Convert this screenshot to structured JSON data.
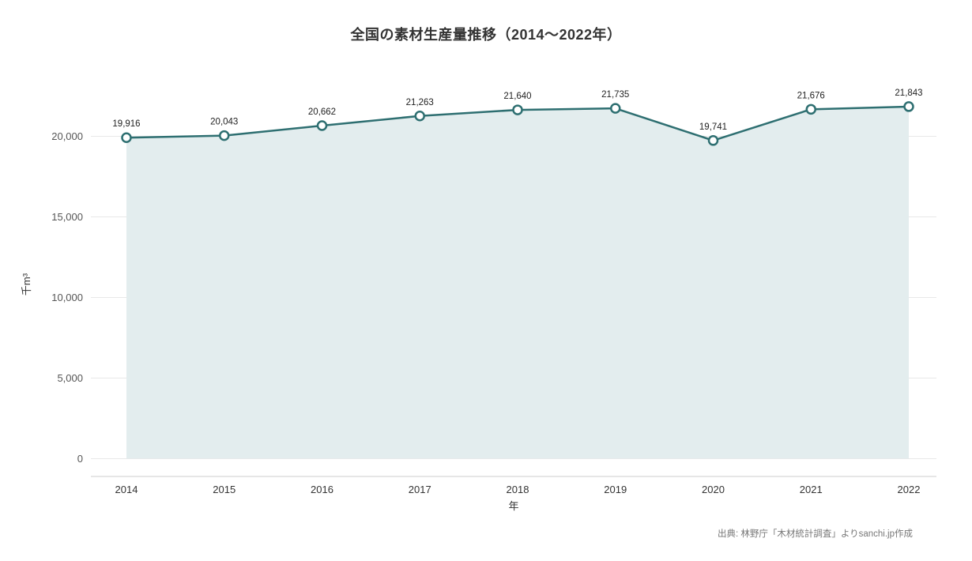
{
  "title": "全国の素材生産量推移（2014〜2022年）",
  "source": "出典: 林野庁「木材統計調査」よりsanchi.jp作成",
  "chart_data": {
    "type": "area",
    "title": "全国の素材生産量推移（2014〜2022年）",
    "categories": [
      "2014",
      "2015",
      "2016",
      "2017",
      "2018",
      "2019",
      "2020",
      "2021",
      "2022"
    ],
    "values": [
      19916,
      20043,
      20662,
      21263,
      21640,
      21735,
      19741,
      21676,
      21843
    ],
    "xlabel": "年",
    "ylabel": "千m³",
    "ylim": [
      -1100,
      23800
    ],
    "yticks": [
      0,
      5000,
      10000,
      15000,
      20000
    ],
    "grid": true,
    "legend": "none",
    "line_color": "#2e6f71",
    "area_color": "#e3edee",
    "marker_fill": "#ffffff",
    "grid_color": "#e8e8e8",
    "axis_line_color": "#cccccc"
  }
}
